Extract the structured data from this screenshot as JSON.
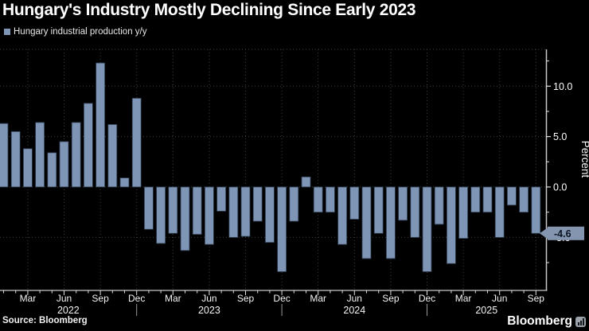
{
  "title": "Hungary's Industry Mostly Declining Since Early 2023",
  "legend": {
    "label": "Hungary industrial production y/y",
    "swatch_color": "#7e95b5"
  },
  "source": "Source: Bloomberg",
  "brand": "Bloomberg",
  "colors": {
    "background": "#000000",
    "bar_fill": "#7e95b5",
    "bar_stroke": "#2f3d50",
    "grid": "#404040",
    "axis_line": "#c9c9c9",
    "tick": "#e0e0e0",
    "label_text": "#f5f5f5",
    "badge_bg": "#8496af",
    "badge_text": "#0a1422"
  },
  "y_axis": {
    "axis_label": "Percent",
    "major_ticks": [
      {
        "value": 10.0,
        "label": "10.0"
      },
      {
        "value": 5.0,
        "label": "5.0"
      },
      {
        "value": 0.0,
        "label": "0.0"
      },
      {
        "value": -5.0,
        "label": "-5.0"
      }
    ],
    "minor_tick_values": [
      12.5,
      7.5,
      2.5,
      -2.5,
      -7.5
    ]
  },
  "x_axis": {
    "month_ticks": [
      {
        "index": 2,
        "label": "Mar"
      },
      {
        "index": 5,
        "label": "Jun"
      },
      {
        "index": 8,
        "label": "Sep"
      },
      {
        "index": 11,
        "label": "Dec"
      },
      {
        "index": 14,
        "label": "Mar"
      },
      {
        "index": 17,
        "label": "Jun"
      },
      {
        "index": 20,
        "label": "Sep"
      },
      {
        "index": 23,
        "label": "Dec"
      },
      {
        "index": 26,
        "label": "Mar"
      },
      {
        "index": 29,
        "label": "Jun"
      },
      {
        "index": 32,
        "label": "Sep"
      },
      {
        "index": 35,
        "label": "Dec"
      },
      {
        "index": 38,
        "label": "Mar"
      },
      {
        "index": 41,
        "label": "Jun"
      },
      {
        "index": 44,
        "label": "Sep"
      }
    ],
    "years": [
      {
        "label": "2022",
        "start_index": 0,
        "end_index": 11,
        "divider_after": true
      },
      {
        "label": "2023",
        "start_index": 12,
        "end_index": 23,
        "divider_after": true
      },
      {
        "label": "2024",
        "start_index": 24,
        "end_index": 35,
        "divider_after": true
      },
      {
        "label": "2025",
        "start_index": 36,
        "end_index": 44,
        "divider_after": false
      }
    ]
  },
  "last_value_badge": {
    "text": "-4.6",
    "value": -4.6
  },
  "chart_data": {
    "type": "bar",
    "title": "Hungary's Industry Mostly Declining Since Early 2023",
    "series_name": "Hungary industrial production y/y",
    "unit": "percent, year over year",
    "ylabel": "Percent",
    "ylim": [
      -10,
      13.6
    ],
    "grid": "dotted",
    "legend_position": "top-left",
    "x": [
      "Jan 2022",
      "Feb 2022",
      "Mar 2022",
      "Apr 2022",
      "May 2022",
      "Jun 2022",
      "Jul 2022",
      "Aug 2022",
      "Sep 2022",
      "Oct 2022",
      "Nov 2022",
      "Dec 2022",
      "Jan 2023",
      "Feb 2023",
      "Mar 2023",
      "Apr 2023",
      "May 2023",
      "Jun 2023",
      "Jul 2023",
      "Aug 2023",
      "Sep 2023",
      "Oct 2023",
      "Nov 2023",
      "Dec 2023",
      "Jan 2024",
      "Feb 2024",
      "Mar 2024",
      "Apr 2024",
      "May 2024",
      "Jun 2024",
      "Jul 2024",
      "Aug 2024",
      "Sep 2024",
      "Oct 2024",
      "Nov 2024",
      "Dec 2024",
      "Jan 2025",
      "Feb 2025",
      "Mar 2025",
      "Apr 2025",
      "May 2025",
      "Jun 2025",
      "Jul 2025",
      "Aug 2025",
      "Sep 2025"
    ],
    "values": [
      6.3,
      5.5,
      3.8,
      6.4,
      3.4,
      4.5,
      6.4,
      8.3,
      12.3,
      6.2,
      0.9,
      8.8,
      -4.2,
      -5.6,
      -4.6,
      -6.3,
      -4.7,
      -5.7,
      -2.4,
      -5.0,
      -4.9,
      -3.4,
      -5.5,
      -8.4,
      -3.4,
      1.0,
      -2.5,
      -2.5,
      -5.7,
      -3.2,
      -7.1,
      -4.6,
      -7.1,
      -3.3,
      -5.0,
      -8.4,
      -3.7,
      -7.6,
      -5.1,
      -2.5,
      -2.5,
      -5.0,
      -1.8,
      -2.5,
      -4.6
    ]
  }
}
